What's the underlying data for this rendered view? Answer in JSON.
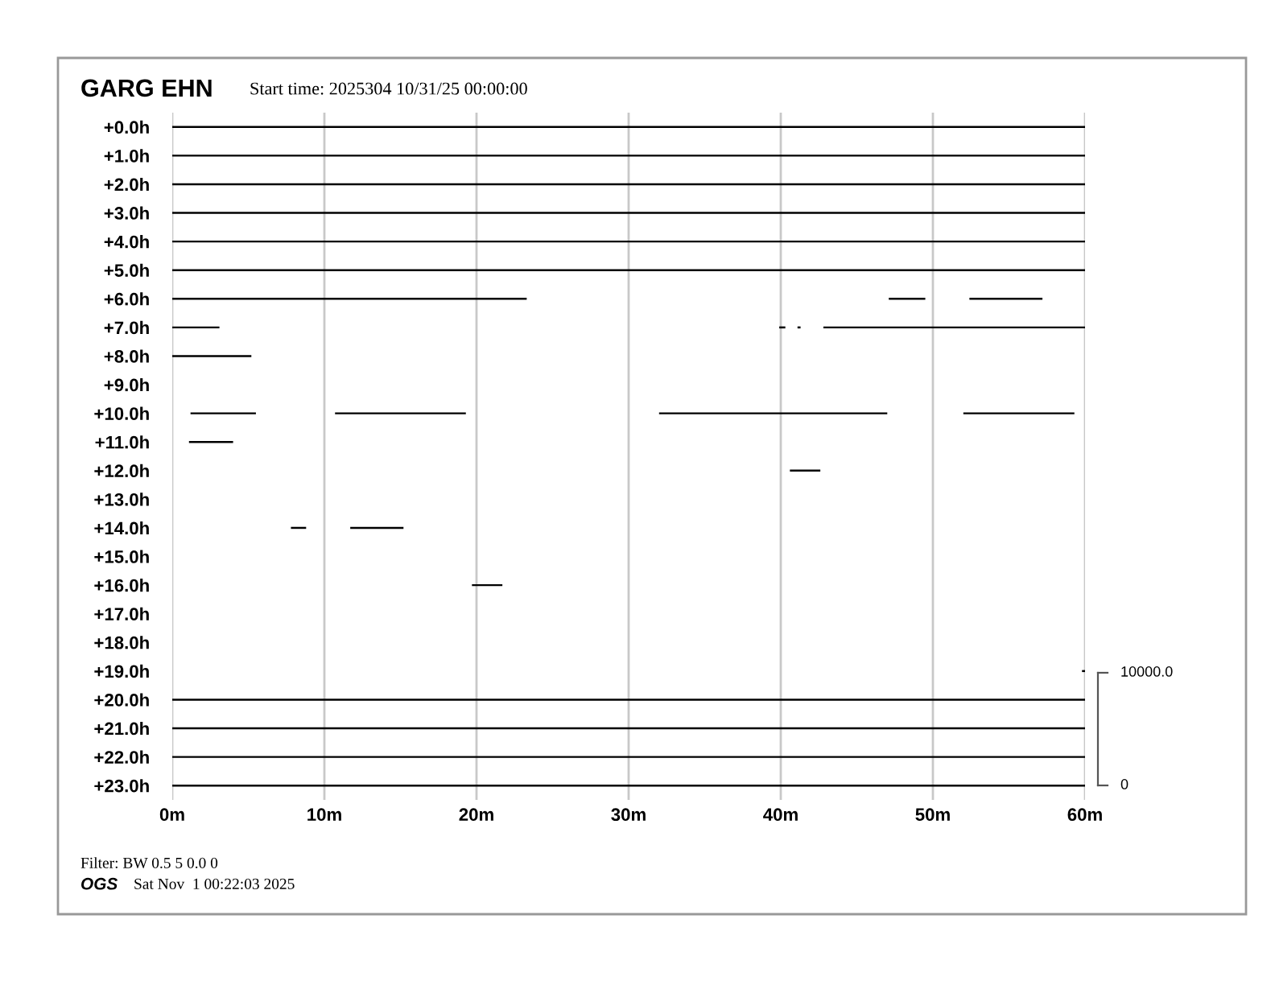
{
  "chart_data": {
    "type": "bar",
    "orientation": "horizontal",
    "title": "GARG EHN",
    "subtitle": "Start time: 2025304 10/31/25 00:00:00",
    "categories": [
      "+0.0h",
      "+1.0h",
      "+2.0h",
      "+3.0h",
      "+4.0h",
      "+5.0h",
      "+6.0h",
      "+7.0h",
      "+8.0h",
      "+9.0h",
      "+10.0h",
      "+11.0h",
      "+12.0h",
      "+13.0h",
      "+14.0h",
      "+15.0h",
      "+16.0h",
      "+17.0h",
      "+18.0h",
      "+19.0h",
      "+20.0h",
      "+21.0h",
      "+22.0h",
      "+23.0h"
    ],
    "series": [
      {
        "color": "#000000",
        "base": [
          0,
          0,
          0,
          0,
          0,
          0,
          0,
          0,
          0,
          null,
          1.2,
          1.1,
          40.6,
          null,
          7.8,
          null,
          19.7,
          null,
          null,
          59.8,
          0,
          0,
          0,
          0
        ],
        "values": [
          60,
          60,
          60,
          60,
          60,
          60,
          23.3,
          3.1,
          5.2,
          null,
          4.3,
          2.9,
          2.0,
          null,
          1.0,
          null,
          2.0,
          null,
          null,
          0.2,
          60,
          60,
          60,
          60
        ]
      },
      {
        "color": "#000000",
        "base": [
          null,
          null,
          null,
          null,
          null,
          null,
          47.1,
          39.9,
          null,
          null,
          10.7,
          null,
          null,
          null,
          11.7,
          null,
          null,
          null,
          null,
          null,
          null,
          null,
          null,
          null
        ],
        "values": [
          null,
          null,
          null,
          null,
          null,
          null,
          2.4,
          0.4,
          null,
          null,
          8.6,
          null,
          null,
          null,
          3.5,
          null,
          null,
          null,
          null,
          null,
          null,
          null,
          null,
          null
        ]
      },
      {
        "color": "#000000",
        "base": [
          null,
          null,
          null,
          null,
          null,
          null,
          52.4,
          41.1,
          null,
          null,
          32.0,
          null,
          null,
          null,
          null,
          null,
          null,
          null,
          null,
          null,
          null,
          null,
          null,
          null
        ],
        "values": [
          null,
          null,
          null,
          null,
          null,
          null,
          4.8,
          0.2,
          null,
          null,
          15.0,
          null,
          null,
          null,
          null,
          null,
          null,
          null,
          null,
          null,
          null,
          null,
          null,
          null
        ]
      },
      {
        "color": "#000000",
        "base": [
          null,
          null,
          null,
          null,
          null,
          null,
          null,
          42.8,
          null,
          null,
          52.0,
          null,
          null,
          null,
          null,
          null,
          null,
          null,
          null,
          null,
          null,
          null,
          null,
          null
        ],
        "values": [
          null,
          null,
          null,
          null,
          null,
          null,
          null,
          17.2,
          null,
          null,
          7.3,
          null,
          null,
          null,
          null,
          null,
          null,
          null,
          null,
          null,
          null,
          null,
          null,
          null
        ]
      }
    ],
    "xlim": [
      0,
      60
    ],
    "xticks": [
      {
        "value": 0,
        "label": "0m"
      },
      {
        "value": 10,
        "label": "10m"
      },
      {
        "value": 20,
        "label": "20m"
      },
      {
        "value": 30,
        "label": "30m"
      },
      {
        "value": 40,
        "label": "40m"
      },
      {
        "value": 50,
        "label": "50m"
      },
      {
        "value": 60,
        "label": "60m"
      }
    ],
    "grid": "x",
    "annotations": [
      "10000.0",
      "0",
      "Filter: BW 0.5 5 0.0 0",
      "OGS",
      "Sat Nov  1 00:22:03 2025"
    ]
  }
}
